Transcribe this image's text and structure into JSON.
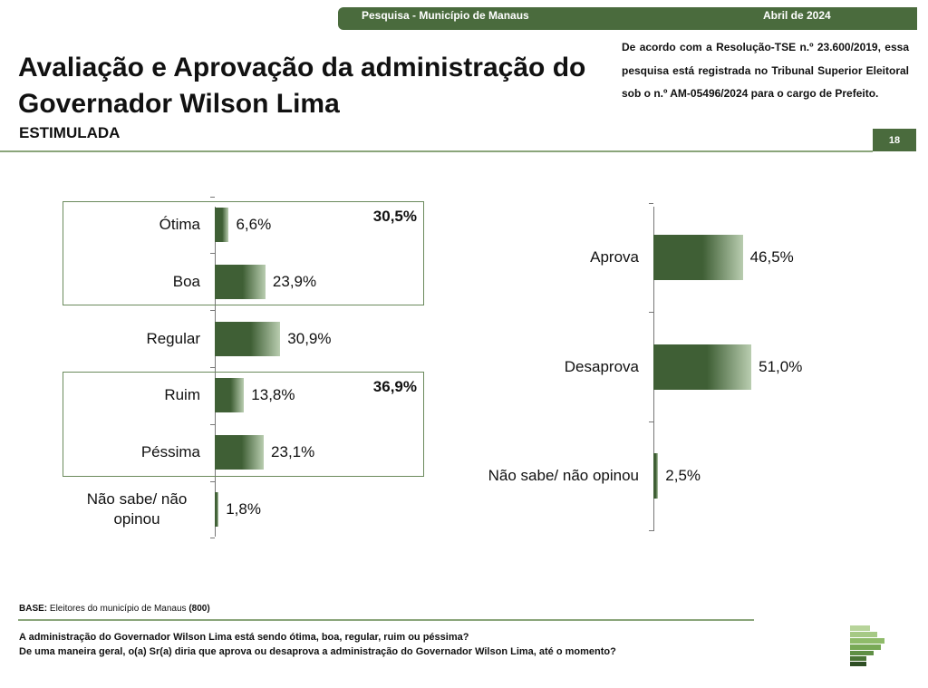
{
  "header": {
    "survey": "Pesquisa - Município de Manaus",
    "date": "Abril de 2024",
    "title": "Avaliação e Aprovação da administração do Governador Wilson Lima",
    "subtitle": "ESTIMULADA",
    "registration": "De acordo com a Resolução-TSE n.º 23.600/2019, essa pesquisa está registrada no Tribunal Superior Eleitoral sob o n.º AM-05496/2024 para o cargo de Prefeito.",
    "page": "18"
  },
  "chart_data": [
    {
      "type": "bar",
      "orientation": "horizontal",
      "categories": [
        "Ótima",
        "Boa",
        "Regular",
        "Ruim",
        "Péssima",
        "Não sabe/ não opinou"
      ],
      "values": [
        6.6,
        23.9,
        30.9,
        13.8,
        23.1,
        1.8
      ],
      "value_labels": [
        "6,6%",
        "23,9%",
        "30,9%",
        "13,8%",
        "23,1%",
        "1,8%"
      ],
      "color": "#3f5f35",
      "annotations": [
        {
          "value": 30.5,
          "label": "30,5%"
        },
        {
          "value": 36.9,
          "label": "36,9%"
        }
      ]
    },
    {
      "type": "bar",
      "orientation": "horizontal",
      "categories": [
        "Aprova",
        "Desaprova",
        "Não sabe/ não opinou"
      ],
      "values": [
        46.5,
        51.0,
        2.5
      ],
      "value_labels": [
        "46,5%",
        "51,0%",
        "2,5%"
      ],
      "color": "#3f5f35"
    }
  ],
  "footer": {
    "base_label": "BASE:",
    "base_text": "Eleitores do município de Manaus",
    "base_count": "(800)",
    "question_1": "A administração do Governador Wilson Lima está sendo ótima, boa, regular, ruim ou péssima?",
    "question_2": "De uma maneira geral, o(a) Sr(a) diria que aprova ou desaprova a administração do Governador Wilson Lima, até o momento?"
  }
}
